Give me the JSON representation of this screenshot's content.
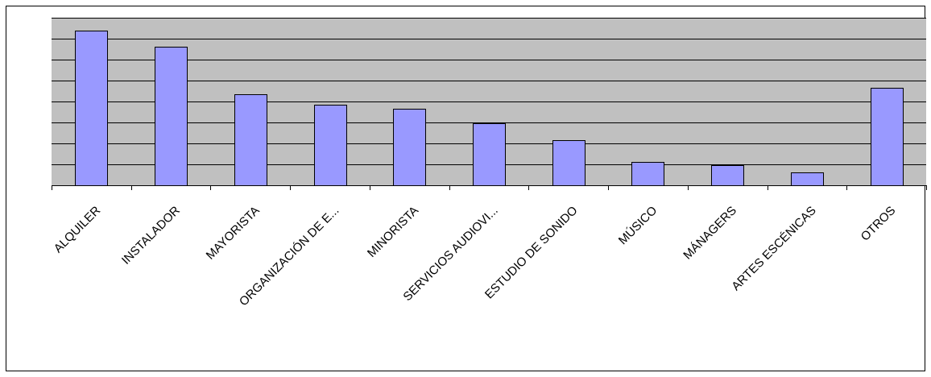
{
  "chart_data": {
    "type": "bar",
    "title": "",
    "xlabel": "",
    "ylabel": "",
    "categories": [
      "ALQUILER",
      "INSTALADOR",
      "MAYORISTA",
      "ORGANIZACIÓN DE E...",
      "MINORISTA",
      "SERVICIOS AUDIOVI...",
      "ESTUDIO DE SONIDO",
      "MÚSICO",
      "MÁNAGERS",
      "ARTES ESCÉNICAS",
      "OTROS"
    ],
    "values": [
      7.4,
      6.6,
      4.35,
      3.85,
      3.65,
      2.95,
      2.15,
      1.1,
      0.95,
      0.6,
      4.65
    ],
    "ylim": [
      0,
      8
    ],
    "y_ticks_labeled": false,
    "grid": true,
    "legend": "none",
    "colors": {
      "bar_fill": "#9999ff",
      "plot_background": "#c0c0c0",
      "gridline": "#000000",
      "frame": "#000000"
    }
  }
}
